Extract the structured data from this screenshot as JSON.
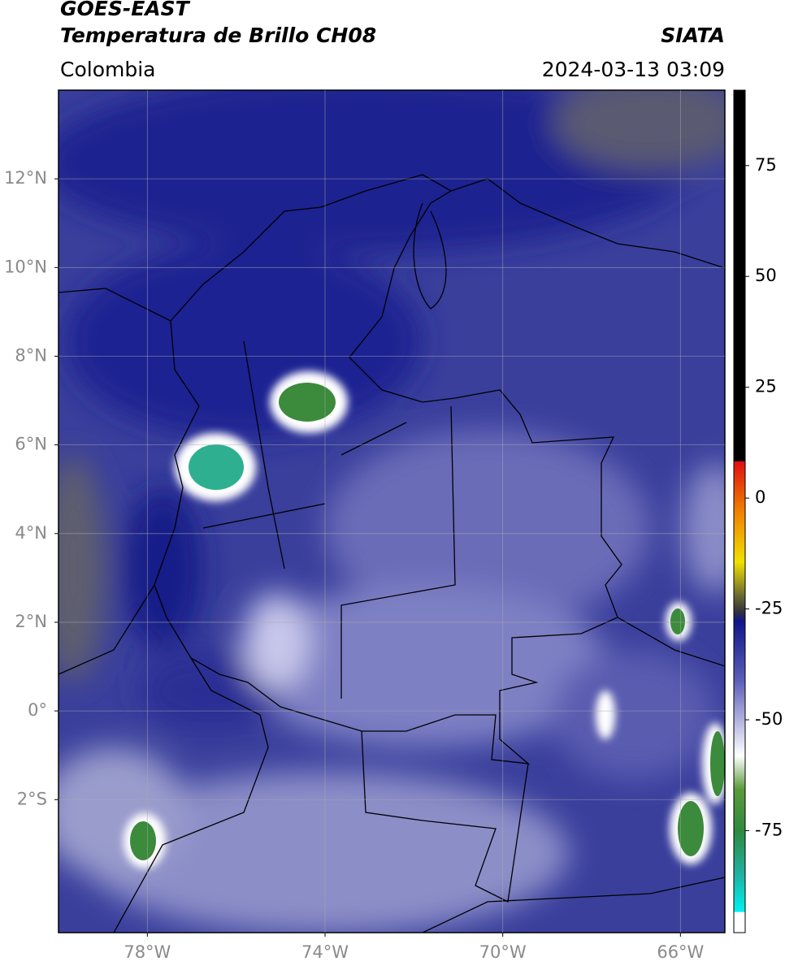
{
  "header": {
    "title": "GOES-EAST",
    "subtitle": "Temperatura de Brillo CH08",
    "source": "SIATA",
    "region": "Colombia",
    "datetime": "2024-03-13 03:09"
  },
  "map": {
    "xlim": [
      -80,
      -65
    ],
    "ylim": [
      -5,
      14
    ],
    "xticks": [
      {
        "value": -78,
        "label": "78°W"
      },
      {
        "value": -74,
        "label": "74°W"
      },
      {
        "value": -70,
        "label": "70°W"
      },
      {
        "value": -66,
        "label": "66°W"
      }
    ],
    "yticks": [
      {
        "value": 12,
        "label": "12°N"
      },
      {
        "value": 10,
        "label": "10°N"
      },
      {
        "value": 8,
        "label": "8°N"
      },
      {
        "value": 6,
        "label": "6°N"
      },
      {
        "value": 4,
        "label": "4°N"
      },
      {
        "value": 2,
        "label": "2°N"
      },
      {
        "value": 0,
        "label": "0°"
      },
      {
        "value": -2,
        "label": "2°S"
      }
    ],
    "grid": true
  },
  "colorbar": {
    "lim": [
      -98,
      92
    ],
    "ticks": [
      75,
      50,
      25,
      0,
      -25,
      -50,
      -75
    ]
  }
}
